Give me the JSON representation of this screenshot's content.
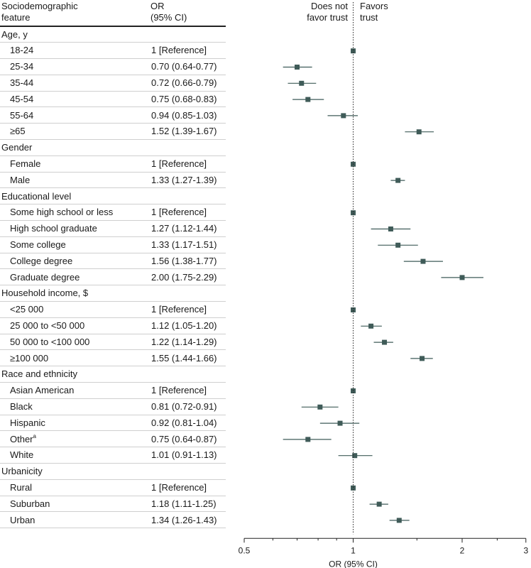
{
  "header": {
    "feature_line1": "Sociodemographic",
    "feature_line2": "feature",
    "or_line1": "OR",
    "or_line2": "(95% CI)",
    "nofavor_line1": "Does not",
    "nofavor_line2": "favor trust",
    "favor_line1": "Favors",
    "favor_line2": "trust"
  },
  "chart_data": {
    "type": "forest",
    "xscale": "log",
    "xlim": [
      0.5,
      3
    ],
    "xticks": [
      0.5,
      1,
      2,
      3
    ],
    "xtick_labels": [
      "0.5",
      "1",
      "2",
      "3"
    ],
    "reference_line": 1,
    "xlabel": "OR (95% CI)",
    "groups": [
      {
        "name": "Age, y",
        "rows": [
          {
            "label": "18-24",
            "or_text": "1 [Reference]",
            "or": 1,
            "lo": null,
            "hi": null
          },
          {
            "label": "25-34",
            "or_text": "0.70 (0.64-0.77)",
            "or": 0.7,
            "lo": 0.64,
            "hi": 0.77
          },
          {
            "label": "35-44",
            "or_text": "0.72 (0.66-0.79)",
            "or": 0.72,
            "lo": 0.66,
            "hi": 0.79
          },
          {
            "label": "45-54",
            "or_text": "0.75 (0.68-0.83)",
            "or": 0.75,
            "lo": 0.68,
            "hi": 0.83
          },
          {
            "label": "55-64",
            "or_text": "0.94 (0.85-1.03)",
            "or": 0.94,
            "lo": 0.85,
            "hi": 1.03
          },
          {
            "label": "≥65",
            "or_text": "1.52 (1.39-1.67)",
            "or": 1.52,
            "lo": 1.39,
            "hi": 1.67
          }
        ]
      },
      {
        "name": "Gender",
        "rows": [
          {
            "label": "Female",
            "or_text": "1 [Reference]",
            "or": 1,
            "lo": null,
            "hi": null
          },
          {
            "label": "Male",
            "or_text": "1.33 (1.27-1.39)",
            "or": 1.33,
            "lo": 1.27,
            "hi": 1.39
          }
        ]
      },
      {
        "name": "Educational level",
        "rows": [
          {
            "label": "Some high school or less",
            "or_text": "1 [Reference]",
            "or": 1,
            "lo": null,
            "hi": null
          },
          {
            "label": "High school graduate",
            "or_text": "1.27 (1.12-1.44)",
            "or": 1.27,
            "lo": 1.12,
            "hi": 1.44
          },
          {
            "label": "Some college",
            "or_text": "1.33 (1.17-1.51)",
            "or": 1.33,
            "lo": 1.17,
            "hi": 1.51
          },
          {
            "label": "College degree",
            "or_text": "1.56 (1.38-1.77)",
            "or": 1.56,
            "lo": 1.38,
            "hi": 1.77
          },
          {
            "label": "Graduate degree",
            "or_text": "2.00 (1.75-2.29)",
            "or": 2.0,
            "lo": 1.75,
            "hi": 2.29
          }
        ]
      },
      {
        "name": "Household income, $",
        "rows": [
          {
            "label": "<25 000",
            "or_text": "1 [Reference]",
            "or": 1,
            "lo": null,
            "hi": null
          },
          {
            "label": "25 000 to <50 000",
            "or_text": "1.12 (1.05-1.20)",
            "or": 1.12,
            "lo": 1.05,
            "hi": 1.2
          },
          {
            "label": "50 000 to <100 000",
            "or_text": "1.22 (1.14-1.29)",
            "or": 1.22,
            "lo": 1.14,
            "hi": 1.29
          },
          {
            "label": "≥100 000",
            "or_text": "1.55 (1.44-1.66)",
            "or": 1.55,
            "lo": 1.44,
            "hi": 1.66
          }
        ]
      },
      {
        "name": "Race and ethnicity",
        "rows": [
          {
            "label": "Asian American",
            "or_text": "1 [Reference]",
            "or": 1,
            "lo": null,
            "hi": null
          },
          {
            "label": "Black",
            "or_text": "0.81 (0.72-0.91)",
            "or": 0.81,
            "lo": 0.72,
            "hi": 0.91
          },
          {
            "label": "Hispanic",
            "or_text": "0.92 (0.81-1.04)",
            "or": 0.92,
            "lo": 0.81,
            "hi": 1.04
          },
          {
            "label": "Other",
            "label_sup": "a",
            "or_text": "0.75 (0.64-0.87)",
            "or": 0.75,
            "lo": 0.64,
            "hi": 0.87
          },
          {
            "label": "White",
            "or_text": "1.01 (0.91-1.13)",
            "or": 1.01,
            "lo": 0.91,
            "hi": 1.13
          }
        ]
      },
      {
        "name": "Urbanicity",
        "rows": [
          {
            "label": "Rural",
            "or_text": "1 [Reference]",
            "or": 1,
            "lo": null,
            "hi": null
          },
          {
            "label": "Suburban",
            "or_text": "1.18 (1.11-1.25)",
            "or": 1.18,
            "lo": 1.11,
            "hi": 1.25
          },
          {
            "label": "Urban",
            "or_text": "1.34 (1.26-1.43)",
            "or": 1.34,
            "lo": 1.26,
            "hi": 1.43
          }
        ]
      }
    ]
  },
  "colors": {
    "marker": "#3f5b58",
    "ci_line": "#3f5b58",
    "text": "#1a1a1a",
    "row_rule": "#cfcfcf",
    "axis": "#222222"
  }
}
